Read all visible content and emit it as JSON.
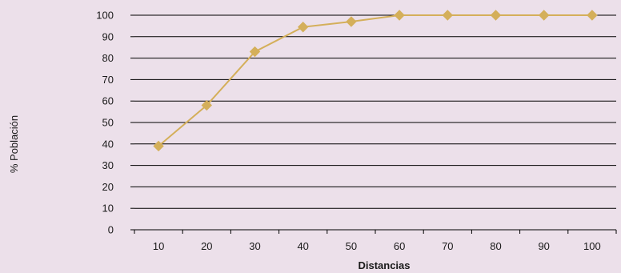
{
  "chart_data": {
    "type": "line",
    "title": "",
    "xlabel": "Distancias",
    "ylabel": "% Población",
    "categories": [
      "10",
      "20",
      "30",
      "40",
      "50",
      "60",
      "70",
      "80",
      "90",
      "100"
    ],
    "yticks": [
      "0",
      "10",
      "20",
      "30",
      "40",
      "50",
      "60",
      "70",
      "80",
      "90",
      "100"
    ],
    "ylim": [
      0,
      100
    ],
    "grid": true,
    "legend": "none",
    "series": [
      {
        "values": [
          39,
          58,
          83,
          94.5,
          97,
          100,
          100,
          100,
          100,
          100
        ],
        "color": "#d4af5a",
        "marker": "diamond"
      }
    ]
  }
}
